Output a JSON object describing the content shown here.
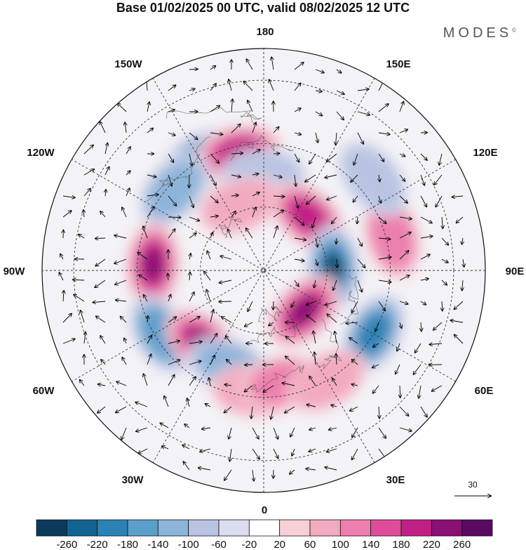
{
  "title": "Base 01/02/2025 00 UTC, valid 08/02/2025 12 UTC",
  "brand": "MODES",
  "brand_mark": "©",
  "meridian_labels": {
    "top": "180",
    "top_left": "150W",
    "top_right": "150E",
    "upper_left": "120W",
    "upper_right": "120E",
    "left": "90W",
    "right": "90E",
    "lower_left": "60W",
    "lower_right": "60E",
    "bottom_left": "30W",
    "bottom_right": "30E",
    "bottom": "0"
  },
  "vector_reference": {
    "label": "30",
    "icon": "arrow-right-icon"
  },
  "colorbar": {
    "labels": [
      "-260",
      "-220",
      "-180",
      "-140",
      "-100",
      "-60",
      "-20",
      "20",
      "60",
      "100",
      "140",
      "180",
      "220",
      "260"
    ],
    "colors": [
      "#0c3a5c",
      "#14628f",
      "#2d82b5",
      "#5b9fcb",
      "#8db4da",
      "#b8c4e2",
      "#dcdcef",
      "#ffffff",
      "#f6d0d6",
      "#f2aac0",
      "#ec7fad",
      "#df4c9a",
      "#c21f86",
      "#8c0f75",
      "#5a0a63"
    ]
  },
  "anomalies": [
    {
      "lon": -150,
      "colat": 40,
      "value": -160
    },
    {
      "lon": -168,
      "colat": 38,
      "value": 200
    },
    {
      "lon": 180,
      "colat": 30,
      "value": -80
    },
    {
      "lon": -132,
      "colat": 38,
      "value": -120
    },
    {
      "lon": -160,
      "colat": 22,
      "value": 80
    },
    {
      "lon": -93,
      "colat": 35,
      "value": 220
    },
    {
      "lon": -58,
      "colat": 38,
      "value": -160
    },
    {
      "lon": -40,
      "colat": 30,
      "value": 240
    },
    {
      "lon": -20,
      "colat": 32,
      "value": -120
    },
    {
      "lon": -5,
      "colat": 38,
      "value": 80
    },
    {
      "lon": 10,
      "colat": 36,
      "value": 100
    },
    {
      "lon": 140,
      "colat": 22,
      "value": 200
    },
    {
      "lon": 92,
      "colat": 22,
      "value": -260
    },
    {
      "lon": 45,
      "colat": 18,
      "value": 240
    },
    {
      "lon": 60,
      "colat": 40,
      "value": -200
    },
    {
      "lon": 105,
      "colat": 42,
      "value": 100
    },
    {
      "lon": 30,
      "colat": 40,
      "value": 60
    },
    {
      "lon": 130,
      "colat": 45,
      "value": -60
    }
  ]
}
